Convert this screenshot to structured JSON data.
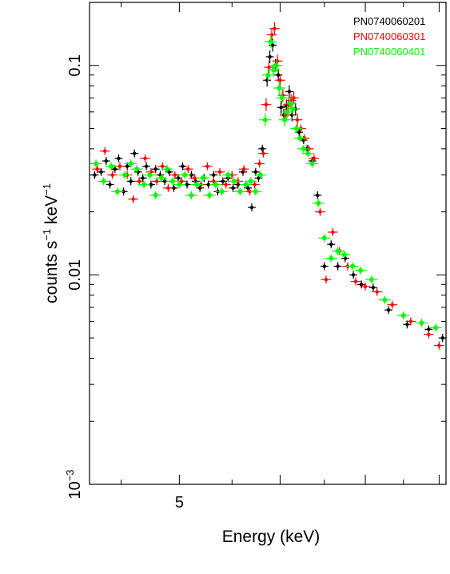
{
  "chart_data": {
    "type": "scatter",
    "title": "",
    "xlabel": "Energy (keV)",
    "ylabel_main": "counts s",
    "ylabel_sup1": "−1",
    "ylabel_mid": " keV",
    "ylabel_sup2": "−1",
    "x_scale": "log",
    "y_scale": "log",
    "xlim": [
      4.25,
      8.1
    ],
    "ylim": [
      0.001,
      0.2
    ],
    "x_tick_labels": [
      "5"
    ],
    "y_tick_labels": [
      {
        "value": 0.1,
        "label": "0.1"
      },
      {
        "value": 0.01,
        "label": "0.01"
      },
      {
        "value": 0.001,
        "label": "10",
        "sup": "−3"
      }
    ],
    "legend_position": "top-right",
    "grid": false,
    "series": [
      {
        "name": "PN0740060201",
        "color": "#000000",
        "points": [
          [
            4.29,
            0.03
          ],
          [
            4.34,
            0.031
          ],
          [
            4.38,
            0.035
          ],
          [
            4.41,
            0.027
          ],
          [
            4.45,
            0.032
          ],
          [
            4.48,
            0.036
          ],
          [
            4.52,
            0.025
          ],
          [
            4.55,
            0.033
          ],
          [
            4.58,
            0.028
          ],
          [
            4.61,
            0.038
          ],
          [
            4.64,
            0.031
          ],
          [
            4.68,
            0.029
          ],
          [
            4.71,
            0.033
          ],
          [
            4.75,
            0.027
          ],
          [
            4.79,
            0.032
          ],
          [
            4.83,
            0.03
          ],
          [
            4.87,
            0.028
          ],
          [
            4.91,
            0.031
          ],
          [
            4.95,
            0.026
          ],
          [
            4.99,
            0.029
          ],
          [
            5.03,
            0.033
          ],
          [
            5.07,
            0.027
          ],
          [
            5.11,
            0.03
          ],
          [
            5.15,
            0.028
          ],
          [
            5.19,
            0.026
          ],
          [
            5.23,
            0.029
          ],
          [
            5.27,
            0.027
          ],
          [
            5.32,
            0.03
          ],
          [
            5.36,
            0.025
          ],
          [
            5.41,
            0.028
          ],
          [
            5.46,
            0.029
          ],
          [
            5.51,
            0.026
          ],
          [
            5.56,
            0.027
          ],
          [
            5.61,
            0.031
          ],
          [
            5.66,
            0.026
          ],
          [
            5.7,
            0.021
          ],
          [
            5.74,
            0.031
          ],
          [
            5.77,
            0.029
          ],
          [
            5.81,
            0.04
          ],
          [
            5.86,
            0.085
          ],
          [
            5.89,
            0.11
          ],
          [
            5.92,
            0.125
          ],
          [
            5.95,
            0.1
          ],
          [
            5.98,
            0.09
          ],
          [
            6.01,
            0.063
          ],
          [
            6.04,
            0.058
          ],
          [
            6.07,
            0.064
          ],
          [
            6.1,
            0.075
          ],
          [
            6.13,
            0.058
          ],
          [
            6.17,
            0.062
          ],
          [
            6.21,
            0.048
          ],
          [
            6.26,
            0.044
          ],
          [
            6.3,
            0.04
          ],
          [
            6.36,
            0.035
          ],
          [
            6.42,
            0.024
          ],
          [
            6.5,
            0.011
          ],
          [
            6.58,
            0.014
          ],
          [
            6.66,
            0.011
          ],
          [
            6.75,
            0.012
          ],
          [
            6.85,
            0.01
          ],
          [
            6.95,
            0.009
          ],
          [
            7.1,
            0.0087
          ],
          [
            7.3,
            0.0068
          ],
          [
            7.55,
            0.0058
          ],
          [
            7.85,
            0.0055
          ],
          [
            8.05,
            0.005
          ]
        ]
      },
      {
        "name": "PN0740060301",
        "color": "#ff0000",
        "points": [
          [
            4.31,
            0.032
          ],
          [
            4.37,
            0.039
          ],
          [
            4.43,
            0.03
          ],
          [
            4.49,
            0.033
          ],
          [
            4.55,
            0.03
          ],
          [
            4.6,
            0.023
          ],
          [
            4.65,
            0.028
          ],
          [
            4.7,
            0.036
          ],
          [
            4.75,
            0.031
          ],
          [
            4.8,
            0.028
          ],
          [
            4.85,
            0.033
          ],
          [
            4.9,
            0.026
          ],
          [
            4.96,
            0.03
          ],
          [
            5.02,
            0.028
          ],
          [
            5.08,
            0.032
          ],
          [
            5.14,
            0.029
          ],
          [
            5.2,
            0.027
          ],
          [
            5.26,
            0.033
          ],
          [
            5.32,
            0.028
          ],
          [
            5.38,
            0.031
          ],
          [
            5.44,
            0.027
          ],
          [
            5.5,
            0.03
          ],
          [
            5.56,
            0.028
          ],
          [
            5.62,
            0.032
          ],
          [
            5.68,
            0.025
          ],
          [
            5.73,
            0.027
          ],
          [
            5.78,
            0.034
          ],
          [
            5.82,
            0.038
          ],
          [
            5.85,
            0.065
          ],
          [
            5.88,
            0.098
          ],
          [
            5.91,
            0.14
          ],
          [
            5.94,
            0.15
          ],
          [
            5.97,
            0.105
          ],
          [
            6.0,
            0.085
          ],
          [
            6.03,
            0.072
          ],
          [
            6.06,
            0.058
          ],
          [
            6.09,
            0.065
          ],
          [
            6.12,
            0.068
          ],
          [
            6.15,
            0.07
          ],
          [
            6.19,
            0.055
          ],
          [
            6.23,
            0.05
          ],
          [
            6.27,
            0.045
          ],
          [
            6.32,
            0.04
          ],
          [
            6.38,
            0.036
          ],
          [
            6.45,
            0.02
          ],
          [
            6.52,
            0.0095
          ],
          [
            6.6,
            0.016
          ],
          [
            6.68,
            0.013
          ],
          [
            6.78,
            0.011
          ],
          [
            6.88,
            0.0093
          ],
          [
            7.0,
            0.0088
          ],
          [
            7.15,
            0.0083
          ],
          [
            7.35,
            0.0072
          ],
          [
            7.6,
            0.006
          ],
          [
            7.85,
            0.0052
          ],
          [
            8.0,
            0.0046
          ]
        ]
      },
      {
        "name": "PN0740060401",
        "color": "#00ff00",
        "points": [
          [
            4.3,
            0.034
          ],
          [
            4.36,
            0.028
          ],
          [
            4.42,
            0.033
          ],
          [
            4.47,
            0.025
          ],
          [
            4.53,
            0.03
          ],
          [
            4.58,
            0.034
          ],
          [
            4.63,
            0.032
          ],
          [
            4.69,
            0.027
          ],
          [
            4.74,
            0.03
          ],
          [
            4.79,
            0.024
          ],
          [
            4.84,
            0.029
          ],
          [
            4.89,
            0.032
          ],
          [
            4.94,
            0.028
          ],
          [
            5.0,
            0.027
          ],
          [
            5.05,
            0.03
          ],
          [
            5.11,
            0.024
          ],
          [
            5.16,
            0.027
          ],
          [
            5.22,
            0.029
          ],
          [
            5.28,
            0.024
          ],
          [
            5.34,
            0.027
          ],
          [
            5.4,
            0.025
          ],
          [
            5.46,
            0.03
          ],
          [
            5.52,
            0.028
          ],
          [
            5.58,
            0.025
          ],
          [
            5.64,
            0.027
          ],
          [
            5.69,
            0.028
          ],
          [
            5.74,
            0.025
          ],
          [
            5.79,
            0.03
          ],
          [
            5.84,
            0.055
          ],
          [
            5.87,
            0.09
          ],
          [
            5.9,
            0.13
          ],
          [
            5.93,
            0.095
          ],
          [
            5.96,
            0.1
          ],
          [
            5.99,
            0.078
          ],
          [
            6.02,
            0.07
          ],
          [
            6.05,
            0.055
          ],
          [
            6.08,
            0.06
          ],
          [
            6.11,
            0.066
          ],
          [
            6.14,
            0.062
          ],
          [
            6.18,
            0.05
          ],
          [
            6.22,
            0.045
          ],
          [
            6.26,
            0.04
          ],
          [
            6.31,
            0.038
          ],
          [
            6.36,
            0.034
          ],
          [
            6.43,
            0.022
          ],
          [
            6.5,
            0.015
          ],
          [
            6.58,
            0.012
          ],
          [
            6.66,
            0.013
          ],
          [
            6.74,
            0.0125
          ],
          [
            6.84,
            0.011
          ],
          [
            6.94,
            0.0105
          ],
          [
            7.08,
            0.0095
          ],
          [
            7.25,
            0.0076
          ],
          [
            7.5,
            0.0064
          ],
          [
            7.75,
            0.0059
          ],
          [
            7.95,
            0.0056
          ]
        ]
      }
    ]
  }
}
